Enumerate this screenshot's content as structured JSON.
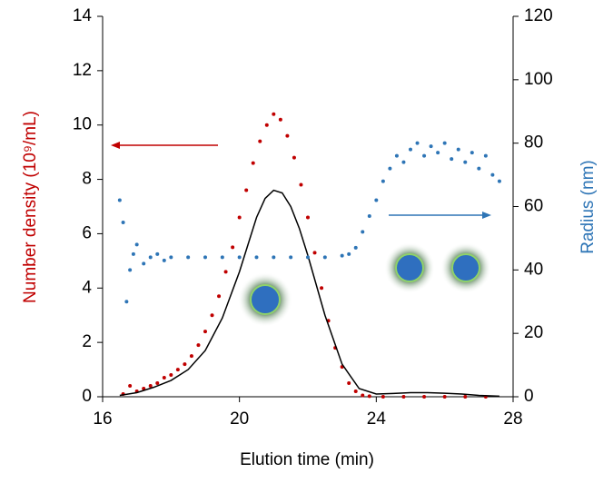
{
  "chart_data": {
    "type": "scatter",
    "x_label": "Elution time (min)",
    "y_label": "Number density (10⁹/mL)",
    "y2_label": "Radius (nm)",
    "xlim": [
      16,
      28
    ],
    "xticks": [
      16,
      20,
      24,
      28
    ],
    "ylim": [
      0,
      14
    ],
    "yticks": [
      0,
      2,
      4,
      6,
      8,
      10,
      12,
      14
    ],
    "y2lim": [
      0,
      120
    ],
    "y2ticks": [
      0,
      20,
      40,
      60,
      80,
      100,
      120
    ],
    "y_label_color": "#c00000",
    "y2_label_color": "#2e75b6",
    "series": [
      {
        "style": "points",
        "color": "#c00000",
        "x": [
          16.6,
          16.8,
          17.0,
          17.2,
          17.4,
          17.6,
          17.8,
          18.0,
          18.2,
          18.4,
          18.6,
          18.8,
          19.0,
          19.2,
          19.4,
          19.6,
          19.8,
          20.0,
          20.2,
          20.4,
          20.6,
          20.8,
          21.0,
          21.2,
          21.4,
          21.6,
          21.8,
          22.0,
          22.2,
          22.4,
          22.6,
          22.8,
          23.0,
          23.2,
          23.4,
          23.6,
          23.8,
          24.2,
          24.8,
          25.4,
          26.0,
          26.6,
          27.2
        ],
        "values": [
          0.1,
          0.4,
          0.2,
          0.3,
          0.4,
          0.5,
          0.7,
          0.8,
          1.0,
          1.2,
          1.5,
          1.9,
          2.4,
          3.0,
          3.7,
          4.6,
          5.5,
          6.6,
          7.6,
          8.6,
          9.4,
          10.0,
          10.4,
          10.2,
          9.6,
          8.8,
          7.8,
          6.6,
          5.3,
          4.0,
          2.8,
          1.8,
          1.1,
          0.5,
          0.2,
          0.05,
          0.02,
          0,
          0,
          0,
          0,
          0,
          0
        ]
      },
      {
        "style": "line",
        "color": "#000000",
        "x": [
          16.5,
          17,
          17.5,
          18,
          18.5,
          19,
          19.5,
          20,
          20.25,
          20.5,
          20.75,
          21,
          21.25,
          21.5,
          21.75,
          22,
          22.5,
          23,
          23.5,
          24,
          24.5,
          25,
          25.5,
          26,
          26.5,
          27,
          27.6
        ],
        "values": [
          0.05,
          0.15,
          0.35,
          0.6,
          1.0,
          1.7,
          2.9,
          4.6,
          5.6,
          6.6,
          7.3,
          7.6,
          7.5,
          7.0,
          6.2,
          5.2,
          3.0,
          1.2,
          0.3,
          0.1,
          0.12,
          0.15,
          0.15,
          0.13,
          0.1,
          0.05,
          0.02
        ]
      },
      {
        "style": "points",
        "color": "#2e75b6",
        "axis": "y2",
        "x": [
          16.5,
          16.6,
          16.7,
          16.8,
          16.9,
          17,
          17.2,
          17.4,
          17.6,
          17.8,
          18,
          18.5,
          19,
          19.5,
          20,
          20.5,
          21,
          21.5,
          22,
          22.5,
          23,
          23.2,
          23.4,
          23.6,
          23.8,
          24,
          24.2,
          24.4,
          24.6,
          24.8,
          25,
          25.2,
          25.4,
          25.6,
          25.8,
          26,
          26.2,
          26.4,
          26.6,
          26.8,
          27,
          27.2,
          27.4,
          27.6
        ],
        "values": [
          62,
          55,
          30,
          40,
          45,
          48,
          42,
          44,
          45,
          43,
          44,
          44,
          44,
          44,
          44,
          44,
          44,
          44,
          44,
          44,
          44.5,
          45,
          47,
          52,
          57,
          62,
          68,
          72,
          76,
          74,
          78,
          80,
          76,
          79,
          77,
          80,
          75,
          78,
          74,
          77,
          72,
          76,
          70,
          68
        ]
      }
    ]
  }
}
